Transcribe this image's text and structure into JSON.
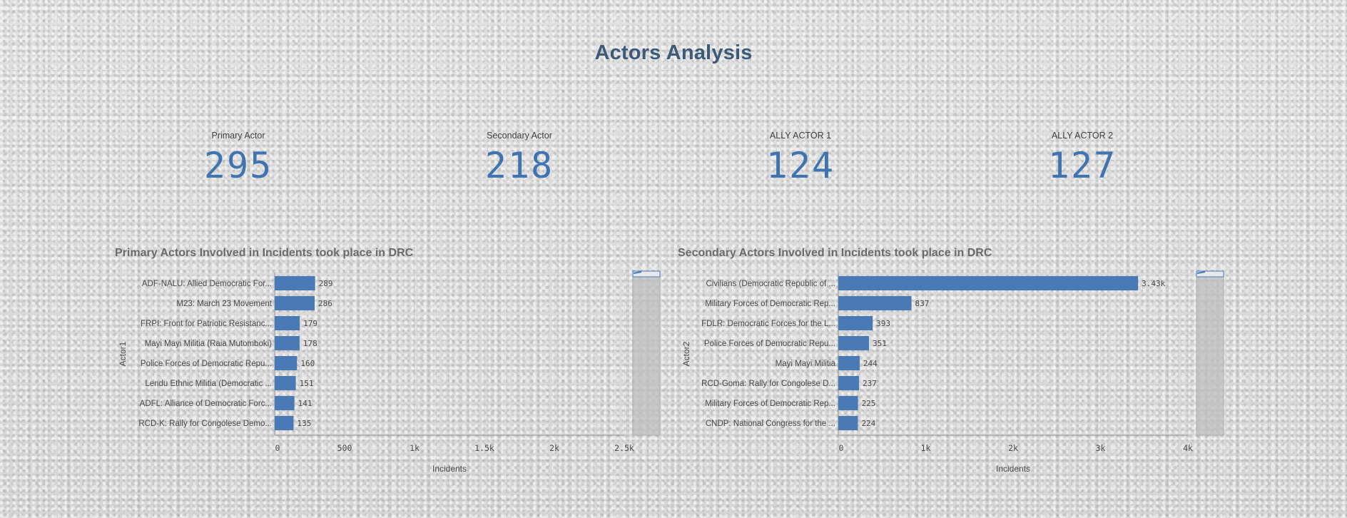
{
  "page": {
    "title": "Actors Analysis"
  },
  "kpis": [
    {
      "label": "Primary Actor",
      "value": "295"
    },
    {
      "label": "Secondary Actor",
      "value": "218"
    },
    {
      "label": "ALLY ACTOR 1",
      "value": "124"
    },
    {
      "label": "ALLY ACTOR 2",
      "value": "127"
    }
  ],
  "colors": {
    "bar": "#4a7ab5",
    "title": "#3d5a78",
    "kpi": "#3f74b0"
  },
  "chart_data": [
    {
      "type": "bar",
      "orientation": "horizontal",
      "title": "Primary Actors Involved in Incidents took place in DRC",
      "xlabel": "Incidents",
      "ylabel": "Actor1",
      "xlim": [
        0,
        2500
      ],
      "ticks": [
        0,
        500,
        1000,
        1500,
        2000,
        2500
      ],
      "tick_labels": [
        "0",
        "500",
        "1k",
        "1.5k",
        "2k",
        "2.5k"
      ],
      "categories": [
        "ADF-NALU: Allied Democratic For...",
        "M23: March 23 Movement",
        "FRPI: Front for Patriotic Resistanc...",
        "Mayi Mayi Militia (Raia Mutomboki)",
        "Police Forces of Democratic Repu...",
        "Lendu Ethnic Militia (Democratic ...",
        "ADFL: Alliance of Democratic Forc...",
        "RCD-K: Rally for Congolese Demo..."
      ],
      "values": [
        289,
        286,
        179,
        178,
        160,
        151,
        141,
        135
      ],
      "value_labels": [
        "289",
        "286",
        "179",
        "178",
        "160",
        "151",
        "141",
        "135"
      ]
    },
    {
      "type": "bar",
      "orientation": "horizontal",
      "title": "Secondary Actors Involved in Incidents took place in DRC",
      "xlabel": "Incidents",
      "ylabel": "Actor2",
      "xlim": [
        0,
        4000
      ],
      "ticks": [
        0,
        1000,
        2000,
        3000,
        4000
      ],
      "tick_labels": [
        "0",
        "1k",
        "2k",
        "3k",
        "4k"
      ],
      "categories": [
        "Civilians (Democratic Republic of ...",
        "Military Forces of Democratic Rep...",
        "FDLR: Democratic Forces for the L...",
        "Police Forces of Democratic Repu...",
        "Mayi Mayi Militia",
        "RCD-Goma: Rally for Congolese D...",
        "Military Forces of Democratic Rep...",
        "CNDP: National Congress for the ..."
      ],
      "values": [
        3430,
        837,
        393,
        351,
        244,
        237,
        225,
        224
      ],
      "value_labels": [
        "3.43k",
        "837",
        "393",
        "351",
        "244",
        "237",
        "225",
        "224"
      ]
    }
  ]
}
